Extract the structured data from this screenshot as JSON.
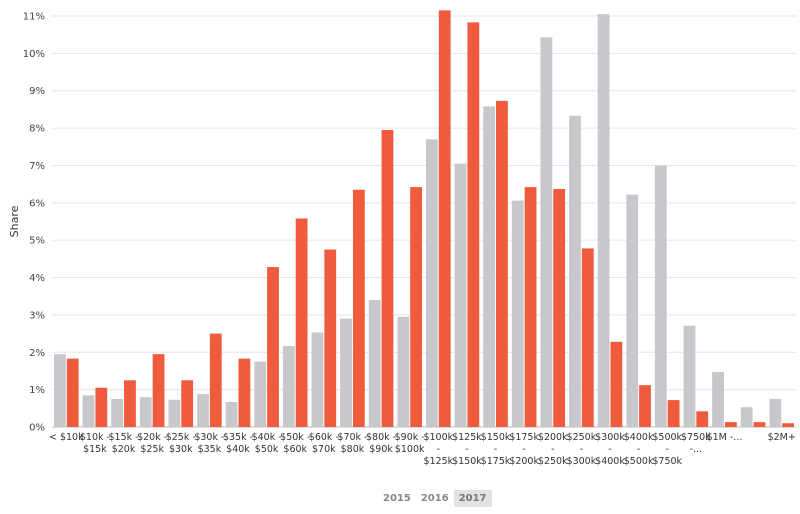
{
  "chart_data": {
    "type": "bar",
    "ylabel": "Share",
    "ylim": [
      0,
      11
    ],
    "yticks": [
      "0%",
      "1%",
      "2%",
      "3%",
      "4%",
      "5%",
      "6%",
      "7%",
      "8%",
      "9%",
      "10%",
      "11%"
    ],
    "categories": [
      [
        "< $10k"
      ],
      [
        "$10k -",
        "$15k"
      ],
      [
        "$15k -",
        "$20k"
      ],
      [
        "$20k -",
        "$25k"
      ],
      [
        "$25k -",
        "$30k"
      ],
      [
        "$30k -",
        "$35k"
      ],
      [
        "$35k -",
        "$40k"
      ],
      [
        "$40k -",
        "$50k"
      ],
      [
        "$50k -",
        "$60k"
      ],
      [
        "$60k -",
        "$70k"
      ],
      [
        "$70k -",
        "$80k"
      ],
      [
        "$80k -",
        "$90k"
      ],
      [
        "$90k -",
        "$100k"
      ],
      [
        "$100k",
        "-",
        "$125k"
      ],
      [
        "$125k",
        "-",
        "$150k"
      ],
      [
        "$150k",
        "-",
        "$175k"
      ],
      [
        "$175k",
        "-",
        "$200k"
      ],
      [
        "$200k",
        "-",
        "$250k"
      ],
      [
        "$250k",
        "-",
        "$300k"
      ],
      [
        "$300k",
        "-",
        "$400k"
      ],
      [
        "$400k",
        "-",
        "$500k"
      ],
      [
        "$500k",
        "-",
        "$750k"
      ],
      [
        "$750k",
        "-..."
      ],
      [
        "$1M -..."
      ],
      [
        ""
      ],
      [
        "$2M+"
      ]
    ],
    "series": [
      {
        "color": "#c8c8cc",
        "values": [
          1.95,
          0.85,
          0.75,
          0.8,
          0.73,
          0.88,
          0.67,
          1.75,
          2.17,
          2.53,
          2.9,
          3.4,
          2.95,
          7.7,
          7.05,
          8.58,
          6.06,
          10.43,
          8.33,
          11.05,
          6.22,
          7.0,
          2.71,
          1.47,
          0.53,
          0.75
        ]
      },
      {
        "color": "#ef5b3d",
        "values": [
          1.83,
          1.05,
          1.25,
          1.95,
          1.25,
          2.5,
          1.83,
          4.28,
          5.58,
          4.75,
          6.35,
          7.95,
          6.42,
          11.15,
          10.83,
          8.73,
          6.42,
          6.37,
          4.78,
          2.28,
          1.12,
          0.72,
          0.42,
          0.13,
          0.13,
          0.1
        ]
      }
    ],
    "legend": [
      "2015",
      "2016",
      "2017"
    ],
    "legend_active": "2017"
  }
}
